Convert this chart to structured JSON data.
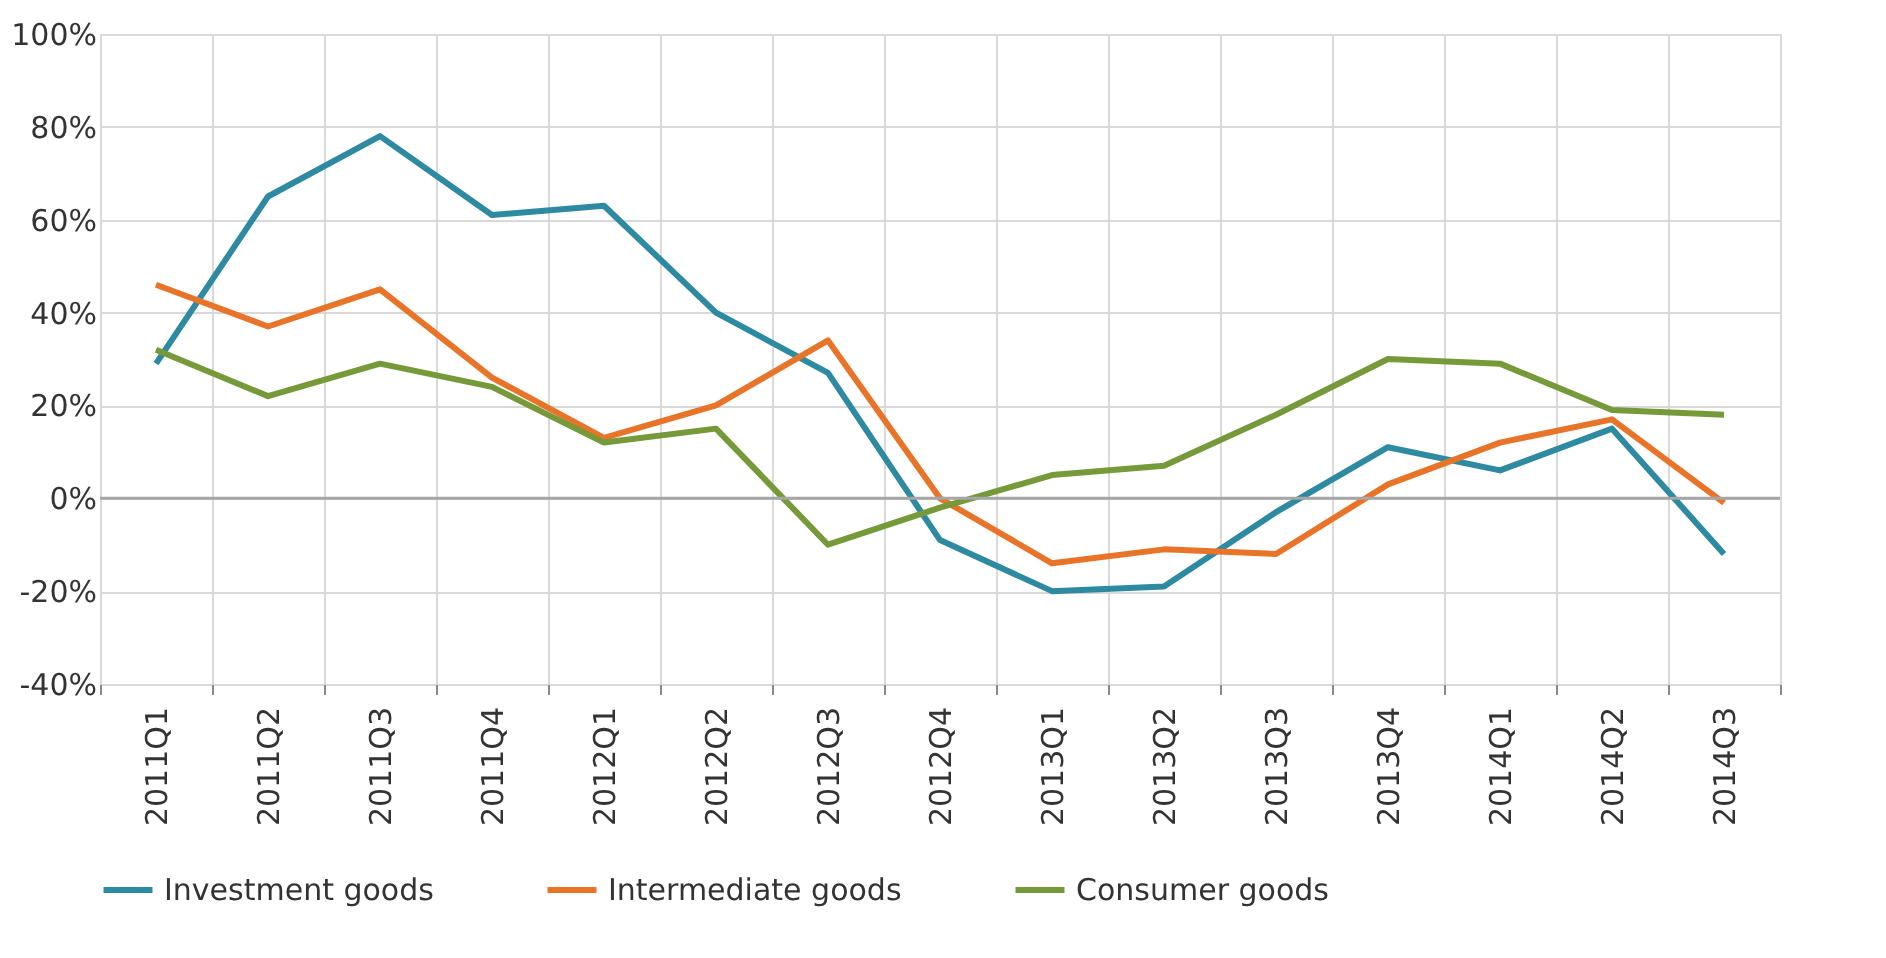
{
  "chart_data": {
    "type": "line",
    "categories": [
      "2011Q1",
      "2011Q2",
      "2011Q3",
      "2011Q4",
      "2012Q1",
      "2012Q2",
      "2012Q3",
      "2012Q4",
      "2013Q1",
      "2013Q2",
      "2013Q3",
      "2013Q4",
      "2014Q1",
      "2014Q2",
      "2014Q3"
    ],
    "series": [
      {
        "name": "Investment goods",
        "color": "#2e8aa0",
        "values": [
          29,
          65,
          78,
          61,
          63,
          40,
          27,
          -9,
          -20,
          -19,
          -3,
          11,
          6,
          15,
          -12
        ]
      },
      {
        "name": "Intermediate goods",
        "color": "#e8742a",
        "values": [
          46,
          37,
          45,
          26,
          13,
          20,
          34,
          0,
          -14,
          -11,
          -12,
          3,
          12,
          17,
          -1
        ]
      },
      {
        "name": "Consumer goods",
        "color": "#76993a",
        "values": [
          32,
          22,
          29,
          24,
          12,
          15,
          -10,
          -2,
          5,
          7,
          18,
          30,
          29,
          19,
          18
        ]
      }
    ],
    "ylim": [
      -40,
      100
    ],
    "yticks": [
      {
        "value": -40,
        "label": "-40%"
      },
      {
        "value": -20,
        "label": "-20%"
      },
      {
        "value": 0,
        "label": "0%"
      },
      {
        "value": 20,
        "label": "20%"
      },
      {
        "value": 40,
        "label": "40%"
      },
      {
        "value": 60,
        "label": "60%"
      },
      {
        "value": 80,
        "label": "80%"
      },
      {
        "value": 100,
        "label": "100%"
      }
    ],
    "ref_lines": [
      {
        "axis": "y",
        "value": 0,
        "color": "#a6a6a6"
      }
    ],
    "grid": true,
    "legend": "bottom",
    "marker": "none",
    "line_style": "solid"
  }
}
